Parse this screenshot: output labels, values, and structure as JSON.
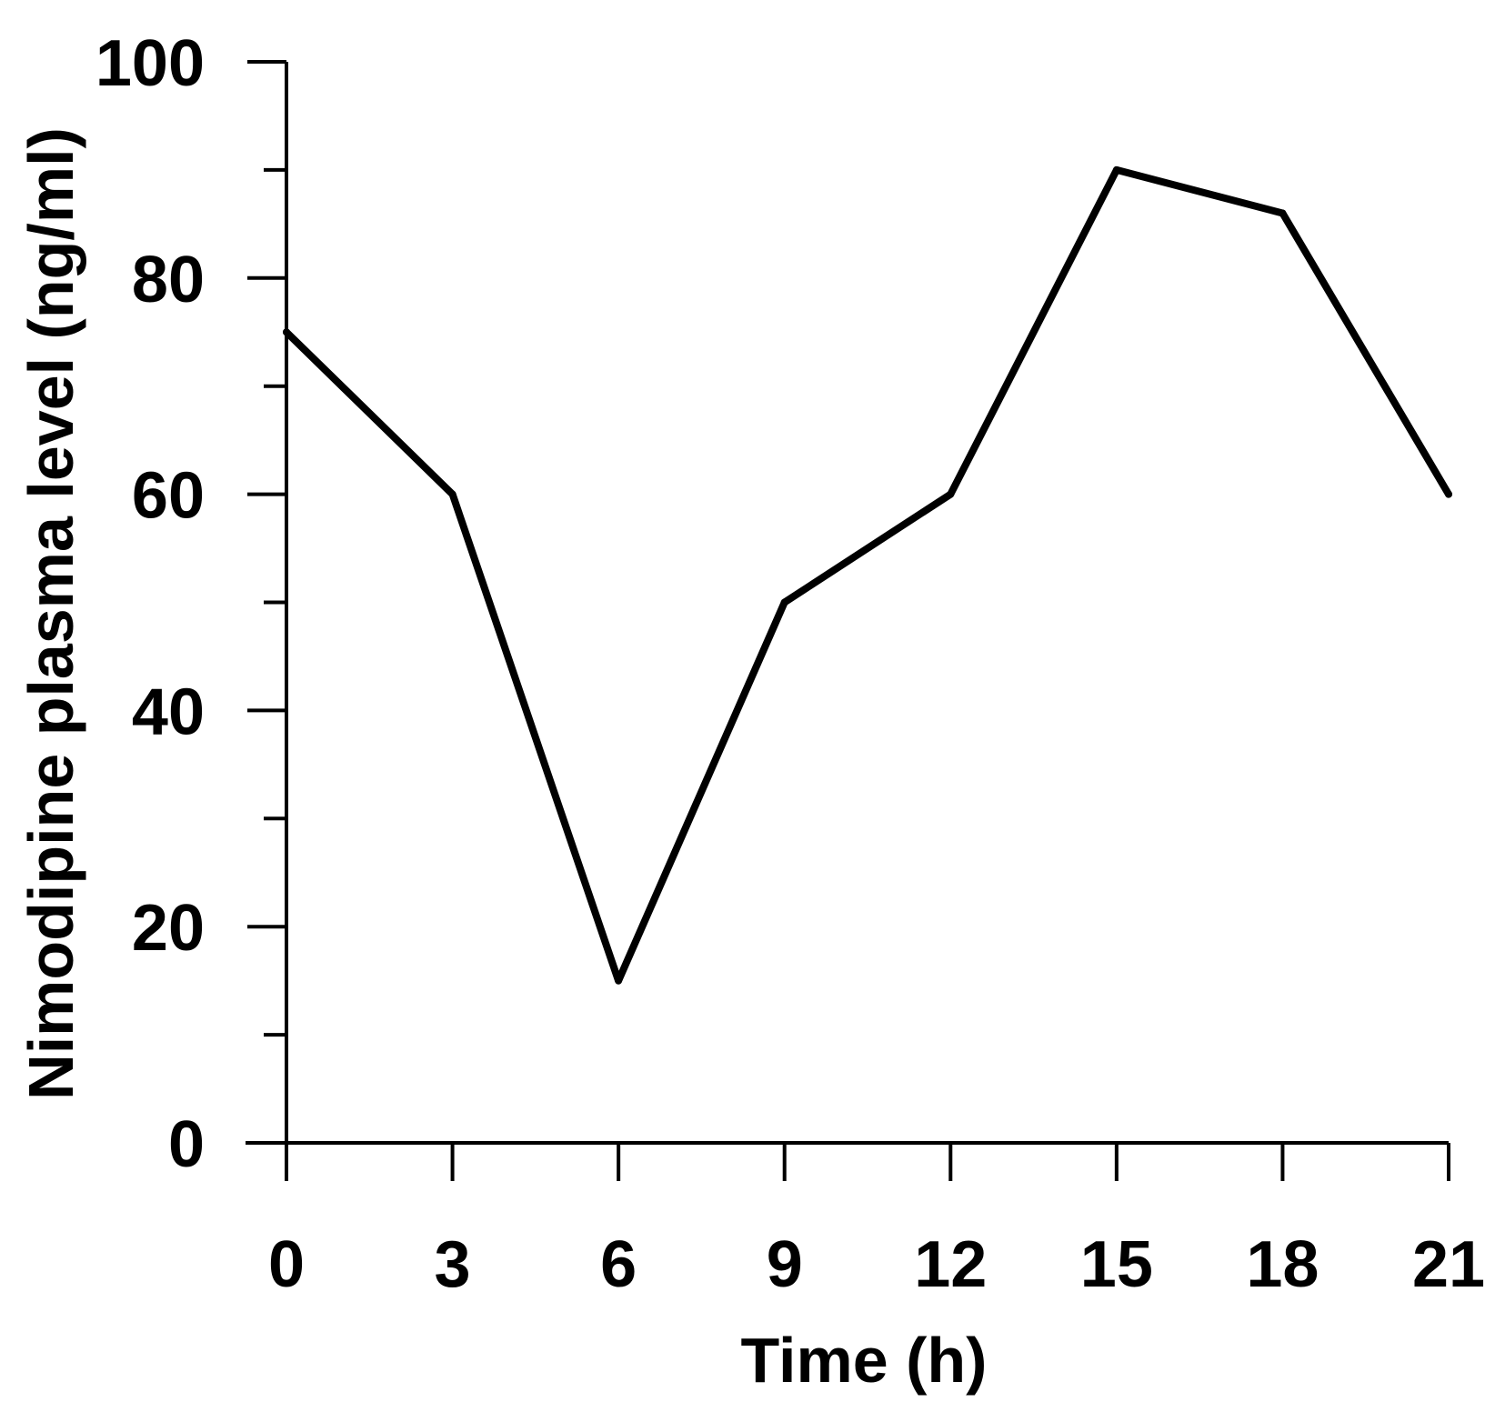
{
  "chart_data": {
    "type": "line",
    "title": "",
    "xlabel": "Time (h)",
    "ylabel": "Nimodipine plasma level (ng/ml)",
    "x": [
      0,
      3,
      6,
      9,
      12,
      15,
      18,
      21
    ],
    "series": [
      {
        "values": [
          75,
          60,
          15,
          50,
          60,
          90,
          86,
          60
        ],
        "color": "#000000"
      }
    ],
    "xticks": [
      "0",
      "3",
      "6",
      "9",
      "12",
      "15",
      "18",
      "21"
    ],
    "yticks": [
      "0",
      "20",
      "40",
      "60",
      "80",
      "100"
    ],
    "xlim": [
      0,
      21
    ],
    "ylim": [
      0,
      100
    ],
    "minor_y_ticks": [
      10,
      30,
      50,
      70,
      90
    ],
    "grid": false,
    "legend": "none"
  }
}
